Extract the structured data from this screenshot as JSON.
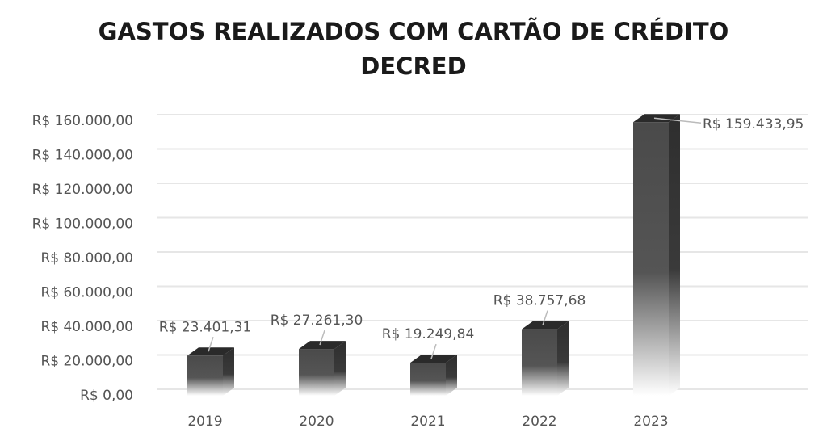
{
  "chart_data": {
    "type": "bar3d",
    "title": "GASTOS REALIZADOS COM CARTÃO DE CRÉDITO DECRED",
    "categories": [
      "2019",
      "2020",
      "2021",
      "2022",
      "2023"
    ],
    "values": [
      23401.31,
      27261.3,
      19249.84,
      38757.68,
      159433.95
    ],
    "value_labels": [
      "R$ 23.401,31",
      "R$ 27.261,30",
      "R$ 19.249,84",
      "R$ 38.757,68",
      "R$ 159.433,95"
    ],
    "color": "#404040",
    "ylim": [
      0,
      160000
    ],
    "yticks": [
      {
        "value": 0,
        "label": "R$ 0,00"
      },
      {
        "value": 20000,
        "label": "R$ 20.000,00"
      },
      {
        "value": 40000,
        "label": "R$ 40.000,00"
      },
      {
        "value": 60000,
        "label": "R$ 60.000,00"
      },
      {
        "value": 80000,
        "label": "R$ 80.000,00"
      },
      {
        "value": 100000,
        "label": "R$ 100.000,00"
      },
      {
        "value": 120000,
        "label": "R$ 120.000,00"
      },
      {
        "value": 140000,
        "label": "R$ 140.000,00"
      },
      {
        "value": 160000,
        "label": "R$ 160.000,00"
      }
    ],
    "grid": true
  }
}
